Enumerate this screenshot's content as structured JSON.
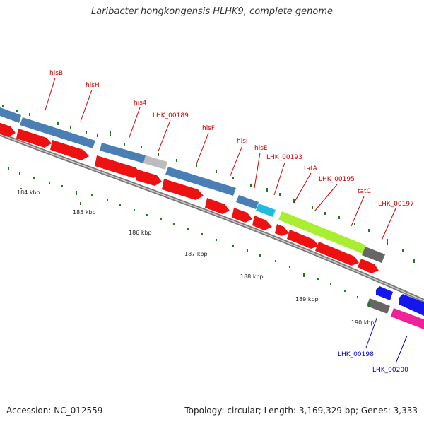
{
  "title": "Laribacter hongkongensis HLHK9, complete genome",
  "footer": {
    "accession": "Accession: NC_012559",
    "stats": "Topology: circular; Length: 3,169,329 bp; Genes: 3,333"
  },
  "colors": {
    "cds_blue": "#4a7fb5",
    "arrow_red": "#ee1111",
    "gray": "#999999",
    "dark_gray": "#666666",
    "cyan": "#22bbdd",
    "lime": "#aaee33",
    "magenta": "#ee2299",
    "blue": "#1515ee",
    "forward_label": "#cc0000",
    "reverse_label": "#0000bb",
    "tick": "#227722"
  },
  "forward_genes": [
    "hisB",
    "hisH",
    "his4",
    "LHK_00189",
    "hisF",
    "hisI",
    "hisE",
    "LHK_00193",
    "tatA",
    "LHK_00195",
    "tatC",
    "LHK_00197"
  ],
  "reverse_genes": [
    "LHK_00198",
    "LHK_00200"
  ],
  "scale_labels": [
    "184 kbp",
    "185 kbp",
    "186 kbp",
    "187 kbp",
    "188 kbp",
    "189 kbp",
    "190 kbp"
  ]
}
